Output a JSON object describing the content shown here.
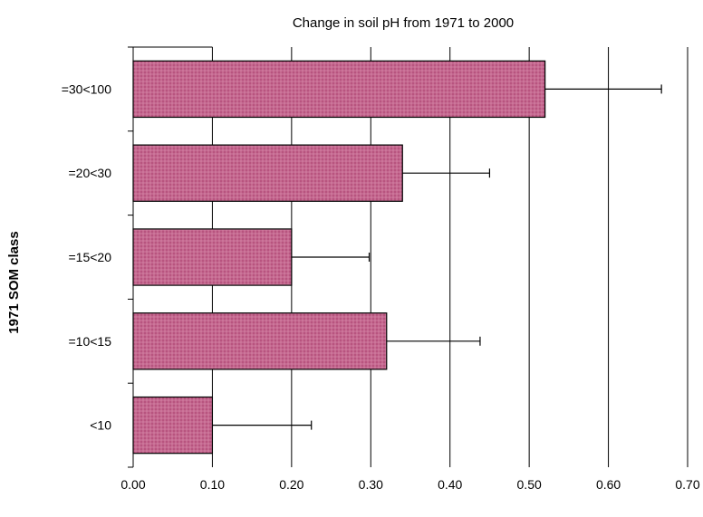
{
  "chart_data": {
    "type": "bar",
    "orientation": "horizontal",
    "title": "Change in soil pH from 1971 to 2000",
    "xlabel": "",
    "ylabel": "1971 SOM class",
    "categories": [
      "=30<100",
      "=20<30",
      "=15<20",
      "=10<15",
      "<10"
    ],
    "series": [
      {
        "values": [
          0.52,
          0.34,
          0.2,
          0.32,
          0.1
        ],
        "error_plus": [
          0.147,
          0.11,
          0.098,
          0.118,
          0.125
        ]
      }
    ],
    "xlim": [
      0,
      0.7
    ],
    "xticks": [
      "0.00",
      "0.10",
      "0.20",
      "0.30",
      "0.40",
      "0.50",
      "0.60",
      "0.70"
    ],
    "grid": "vertical",
    "legend": "none",
    "bar_color": "#b8547f",
    "bar_pattern_color": "#d98aab"
  }
}
